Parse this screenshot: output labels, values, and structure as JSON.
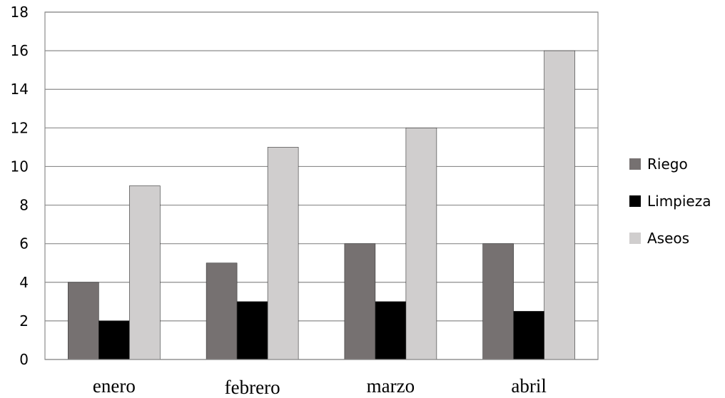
{
  "chart_data": {
    "type": "bar",
    "categories": [
      "enero",
      "febrero",
      "marzo",
      "abril"
    ],
    "series": [
      {
        "name": "Riego",
        "values": [
          4,
          5,
          6,
          6
        ],
        "color": "#767171"
      },
      {
        "name": "Limpieza",
        "values": [
          2,
          3,
          3,
          2.5
        ],
        "color": "#000000"
      },
      {
        "name": "Aseos",
        "values": [
          9,
          11,
          12,
          16
        ],
        "color": "#d0cece"
      }
    ],
    "ylim": [
      0,
      18
    ],
    "yticks": [
      "0",
      "2",
      "4",
      "6",
      "8",
      "10",
      "12",
      "14",
      "16",
      "18"
    ],
    "grid": true,
    "legend_position": "right",
    "title": "",
    "xlabel": "",
    "ylabel": ""
  }
}
